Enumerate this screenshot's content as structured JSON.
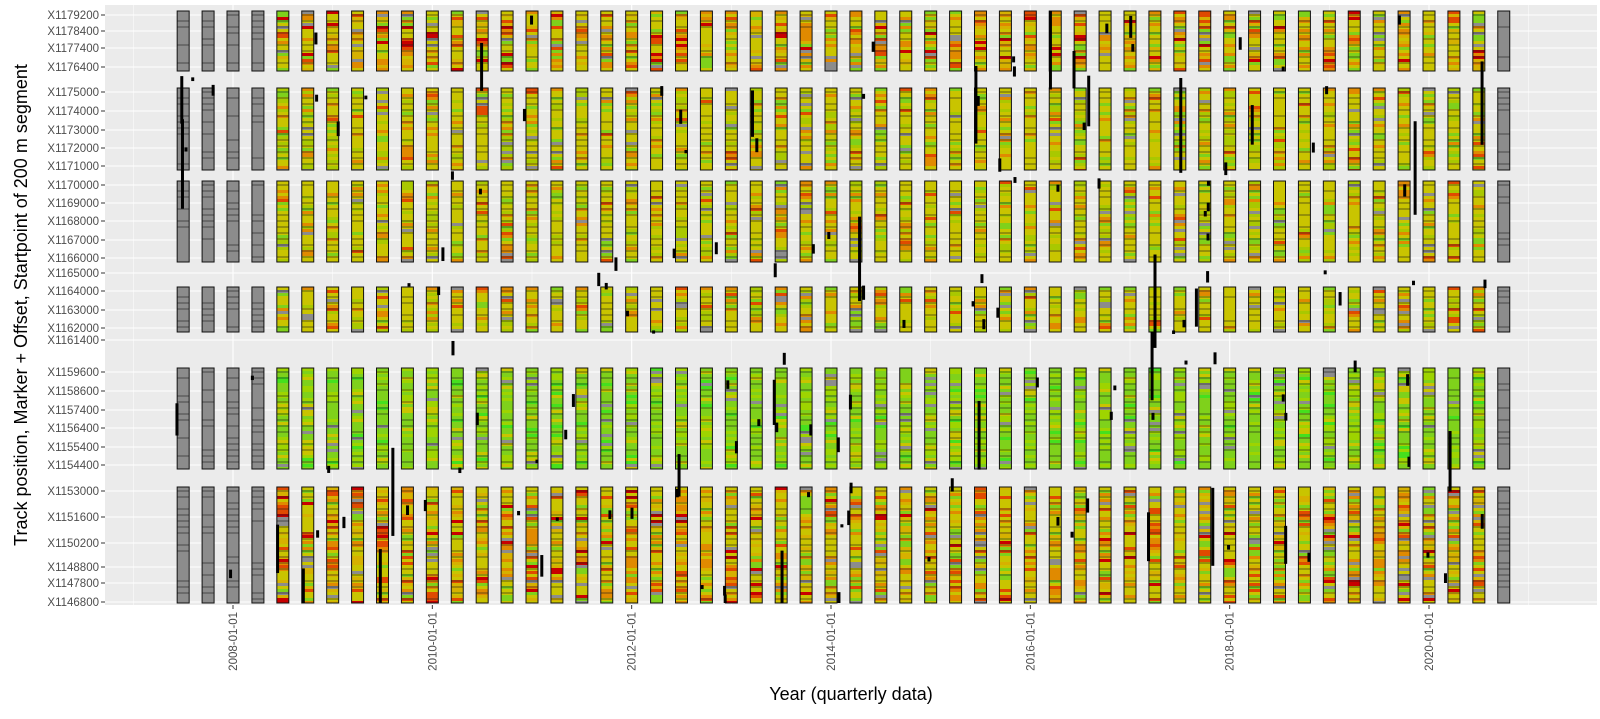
{
  "chart_data": {
    "type": "heatmap",
    "xlabel": "Year (quarterly data)",
    "ylabel": "Track position, Marker + Offset, Startpoint of 200 m segment",
    "x_tick_labels": [
      "2008-01-01",
      "2010-01-01",
      "2012-01-01",
      "2014-01-01",
      "2016-01-01",
      "2018-01-01",
      "2020-01-01"
    ],
    "x_tick_years": [
      2008,
      2010,
      2012,
      2014,
      2016,
      2018,
      2020
    ],
    "x_range": [
      2006.3,
      2021.4
    ],
    "quarters_start": 2007.5,
    "quarters_end": 2020.75,
    "y_tick_labels": [
      "X1179200",
      "X1178400",
      "X1177400",
      "X1176400",
      "X1175000",
      "X1174000",
      "X1173000",
      "X1172000",
      "X1171000",
      "X1170000",
      "X1169000",
      "X1168000",
      "X1167000",
      "X1166000",
      "X1165000",
      "X1164000",
      "X1163000",
      "X1162000",
      "X1161400",
      "X1159600",
      "X1158600",
      "X1157400",
      "X1156400",
      "X1155400",
      "X1154400",
      "X1153000",
      "X1151600",
      "X1150200",
      "X1148800",
      "X1147800",
      "X1146800"
    ],
    "y_segments": [
      {
        "from": "X1179200",
        "to": "X1176400",
        "status": "measured"
      },
      {
        "from": "X1175000",
        "to": "X1171000",
        "status": "measured"
      },
      {
        "from": "X1170000",
        "to": "X1166000",
        "status": "measured"
      },
      {
        "from": "X1164000",
        "to": "X1162000",
        "status": "measured"
      },
      {
        "from": "X1159600",
        "to": "X1154400",
        "status": "measured"
      },
      {
        "from": "X1153000",
        "to": "X1146800",
        "status": "measured"
      }
    ],
    "first_quarters_unmeasured": 4,
    "last_quarter_unmeasured": true,
    "condition_colors": {
      "good": "#7fd11b",
      "acceptable": "#c9c400",
      "warning": "#e08a00",
      "poor": "#e04a00",
      "critical": "#c80000",
      "excellent": "#45e01e",
      "no_data": "#8c8c8c"
    },
    "grid": true,
    "legend": "none"
  }
}
